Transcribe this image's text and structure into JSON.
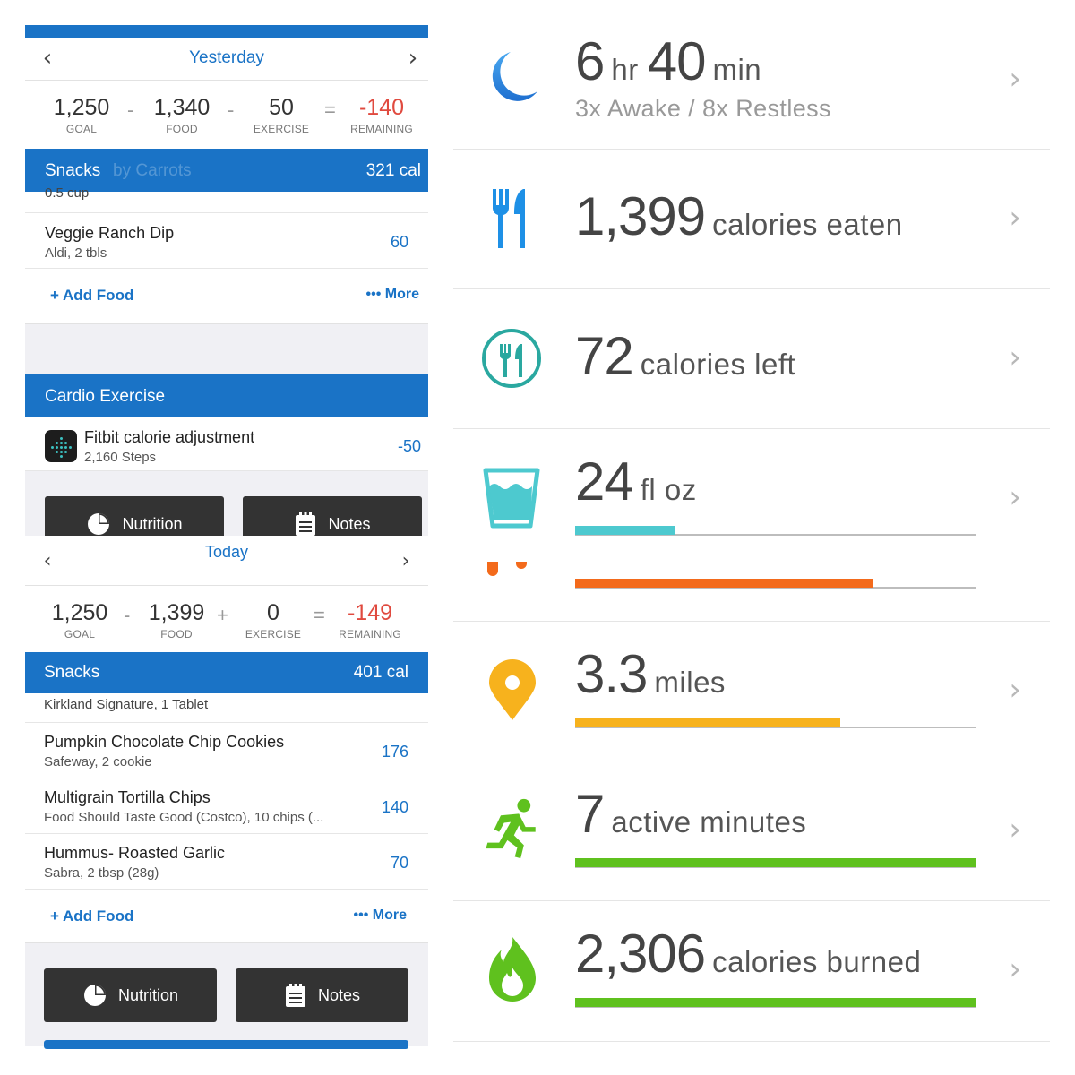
{
  "yesterday": {
    "date": "Yesterday",
    "goal": "1,250",
    "food": "1,340",
    "exercise": "50",
    "remaining": "-140",
    "labels": {
      "goal": "GOAL",
      "food": "FOOD",
      "exercise": "EXERCISE",
      "remaining": "REMAINING"
    },
    "ops": [
      "-",
      "-",
      "="
    ],
    "snacks_title": "Snacks",
    "snacks_cal": "321 cal",
    "snack_overlap": "by Carrots",
    "cut_row": "0.5 cup",
    "items": [
      {
        "name": "Veggie Ranch Dip",
        "sub": "Aldi, 2 tbls",
        "cal": "60"
      }
    ],
    "add_food": "Add Food",
    "more": "More",
    "cardio_title": "Cardio Exercise",
    "cardio_items": [
      {
        "name": "Fitbit calorie adjustment",
        "sub": "2,160 Steps",
        "cal": "-50"
      }
    ],
    "nutrition": "Nutrition",
    "notes": "Notes"
  },
  "today": {
    "date": "Today",
    "goal": "1,250",
    "food": "1,399",
    "exercise": "0",
    "remaining": "-149",
    "labels": {
      "goal": "GOAL",
      "food": "FOOD",
      "exercise": "EXERCISE",
      "remaining": "REMAINING"
    },
    "ops": [
      "-",
      "+",
      "="
    ],
    "snacks_title": "Snacks",
    "snacks_cal": "401 cal",
    "cut_row": "Kirkland Signature, 1 Tablet",
    "items": [
      {
        "name": "Pumpkin Chocolate Chip Cookies",
        "sub": "Safeway, 2 cookie",
        "cal": "176"
      },
      {
        "name": "Multigrain Tortilla Chips",
        "sub": "Food Should Taste Good (Costco), 10 chips (...",
        "cal": "140"
      },
      {
        "name": "Hummus- Roasted Garlic",
        "sub": "Sabra, 2 tbsp (28g)",
        "cal": "70"
      }
    ],
    "add_food": "Add Food",
    "more": "More",
    "nutrition": "Nutrition",
    "notes": "Notes"
  },
  "fitbit": {
    "sleep": {
      "hr": "6",
      "hr_unit": "hr",
      "min": "40",
      "min_unit": "min",
      "sub": "3x Awake / 8x Restless",
      "icon": "moon-icon",
      "color": "#2f8de4"
    },
    "eaten": {
      "value": "1,399",
      "unit": "calories eaten",
      "icon": "fork-knife-icon",
      "color": "#1e90e6"
    },
    "left": {
      "value": "72",
      "unit": "calories left",
      "icon": "plate-icon",
      "color": "#2aa8a0"
    },
    "water": {
      "value": "24",
      "unit": "fl oz",
      "icon": "glass-icon",
      "color": "#4dc9cf",
      "progress": 0.25
    },
    "steps": {
      "icon": "footsteps-icon",
      "color": "#f36a1b",
      "progress": 0.74
    },
    "distance": {
      "value": "3.3",
      "unit": "miles",
      "icon": "location-pin-icon",
      "color": "#f7b21d",
      "progress": 0.66
    },
    "active": {
      "value": "7",
      "unit": "active minutes",
      "icon": "running-person-icon",
      "color": "#5fc11e",
      "progress": 1.0
    },
    "burned": {
      "value": "2,306",
      "unit": "calories burned",
      "icon": "flame-icon",
      "color": "#5fc11e",
      "progress": 1.0
    }
  }
}
